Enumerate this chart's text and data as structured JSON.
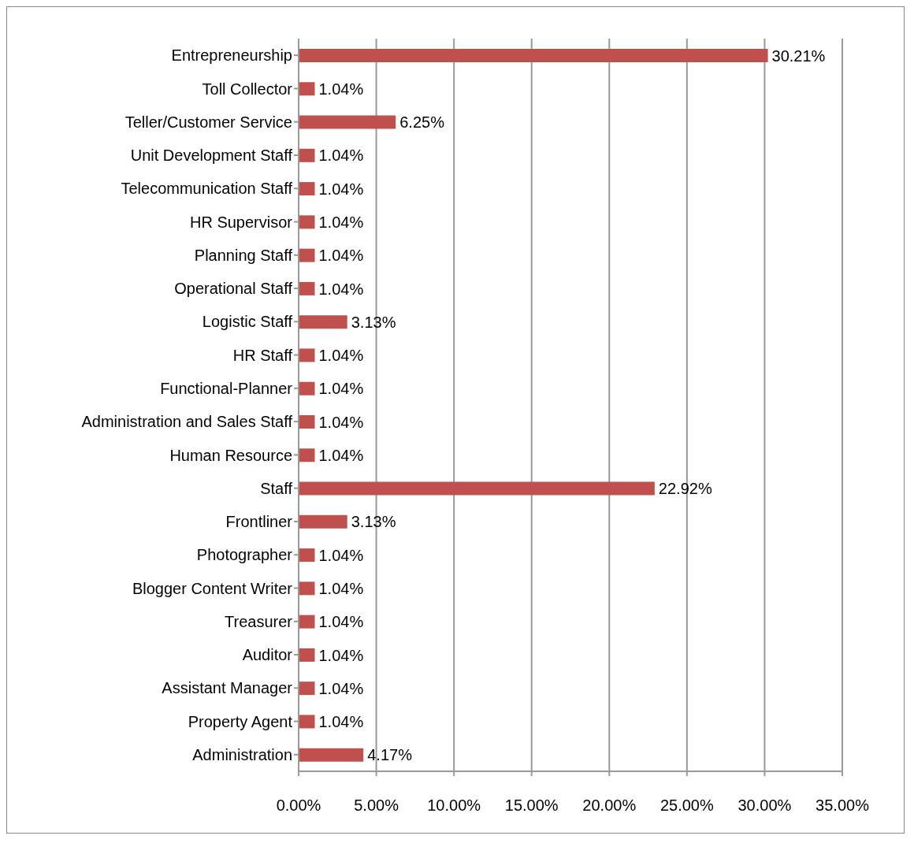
{
  "chart_data": {
    "type": "bar",
    "orientation": "horizontal",
    "categories": [
      "Entrepreneurship",
      "Toll Collector",
      "Teller/Customer Service",
      "Unit Development Staff",
      "Telecommunication Staff",
      "HR Supervisor",
      "Planning Staff",
      "Operational Staff",
      "Logistic Staff",
      "HR Staff",
      "Functional-Planner",
      "Administration and Sales Staff",
      "Human Resource",
      "Staff",
      "Frontliner",
      "Photographer",
      "Blogger Content Writer",
      "Treasurer",
      "Auditor",
      "Assistant Manager",
      "Property Agent",
      "Administration"
    ],
    "values": [
      30.21,
      1.04,
      6.25,
      1.04,
      1.04,
      1.04,
      1.04,
      1.04,
      3.13,
      1.04,
      1.04,
      1.04,
      1.04,
      22.92,
      3.13,
      1.04,
      1.04,
      1.04,
      1.04,
      1.04,
      1.04,
      4.17
    ],
    "value_labels": [
      "30.21%",
      "1.04%",
      "6.25%",
      "1.04%",
      "1.04%",
      "1.04%",
      "1.04%",
      "1.04%",
      "3.13%",
      "1.04%",
      "1.04%",
      "1.04%",
      "1.04%",
      "22.92%",
      "3.13%",
      "1.04%",
      "1.04%",
      "1.04%",
      "1.04%",
      "1.04%",
      "1.04%",
      "4.17%"
    ],
    "color": "#c0504d",
    "xlim": [
      0,
      35
    ],
    "xticks": [
      {
        "value": 0,
        "label": "0.00%"
      },
      {
        "value": 5,
        "label": "5.00%"
      },
      {
        "value": 10,
        "label": "10.00%"
      },
      {
        "value": 15,
        "label": "15.00%"
      },
      {
        "value": 20,
        "label": "20.00%"
      },
      {
        "value": 25,
        "label": "25.00%"
      },
      {
        "value": 30,
        "label": "30.00%"
      },
      {
        "value": 35,
        "label": "35.00%"
      }
    ],
    "grid": "x"
  }
}
